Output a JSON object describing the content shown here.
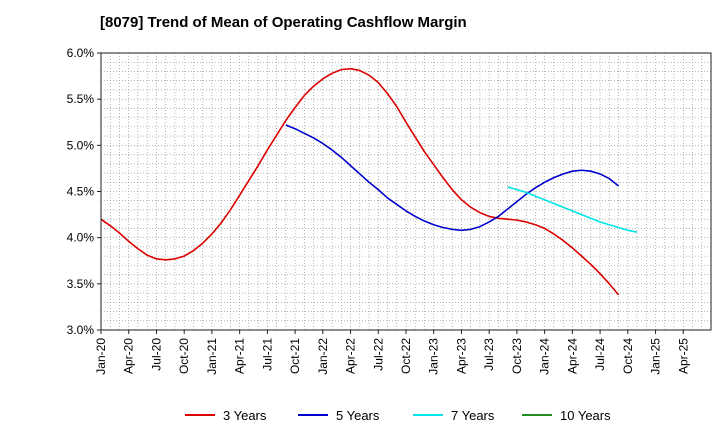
{
  "chart_data": {
    "type": "line",
    "title": "[8079]  Trend of Mean of Operating Cashflow Margin",
    "xlabel": "",
    "ylabel": "",
    "x_ticks": [
      "Jan-20",
      "Apr-20",
      "Jul-20",
      "Oct-20",
      "Jan-21",
      "Apr-21",
      "Jul-21",
      "Oct-21",
      "Jan-22",
      "Apr-22",
      "Jul-22",
      "Oct-22",
      "Jan-23",
      "Apr-23",
      "Jul-23",
      "Oct-23",
      "Jan-24",
      "Apr-24",
      "Jul-24",
      "Oct-24",
      "Jan-25",
      "Apr-25"
    ],
    "y_ticks": [
      "3.0%",
      "3.5%",
      "4.0%",
      "4.5%",
      "5.0%",
      "5.5%",
      "6.0%"
    ],
    "ylim": [
      3.0,
      6.0
    ],
    "grid": true,
    "legend_position": "bottom",
    "series": [
      {
        "name": "3 Years",
        "color": "#dd0000",
        "points": [
          [
            "2020-01",
            4.2
          ],
          [
            "2020-02",
            4.13
          ],
          [
            "2020-03",
            4.05
          ],
          [
            "2020-04",
            3.96
          ],
          [
            "2020-05",
            3.88
          ],
          [
            "2020-06",
            3.81
          ],
          [
            "2020-07",
            3.77
          ],
          [
            "2020-08",
            3.76
          ],
          [
            "2020-09",
            3.77
          ],
          [
            "2020-10",
            3.8
          ],
          [
            "2020-11",
            3.86
          ],
          [
            "2020-12",
            3.94
          ],
          [
            "2021-01",
            4.04
          ],
          [
            "2021-02",
            4.16
          ],
          [
            "2021-03",
            4.3
          ],
          [
            "2021-04",
            4.46
          ],
          [
            "2021-05",
            4.62
          ],
          [
            "2021-06",
            4.78
          ],
          [
            "2021-07",
            4.95
          ],
          [
            "2021-08",
            5.11
          ],
          [
            "2021-09",
            5.27
          ],
          [
            "2021-10",
            5.41
          ],
          [
            "2021-11",
            5.54
          ],
          [
            "2021-12",
            5.64
          ],
          [
            "2022-01",
            5.72
          ],
          [
            "2022-02",
            5.78
          ],
          [
            "2022-03",
            5.82
          ],
          [
            "2022-04",
            5.83
          ],
          [
            "2022-05",
            5.81
          ],
          [
            "2022-06",
            5.76
          ],
          [
            "2022-07",
            5.68
          ],
          [
            "2022-08",
            5.56
          ],
          [
            "2022-09",
            5.42
          ],
          [
            "2022-10",
            5.25
          ],
          [
            "2022-11",
            5.09
          ],
          [
            "2022-12",
            4.93
          ],
          [
            "2023-01",
            4.79
          ],
          [
            "2023-02",
            4.65
          ],
          [
            "2023-03",
            4.52
          ],
          [
            "2023-04",
            4.41
          ],
          [
            "2023-05",
            4.33
          ],
          [
            "2023-06",
            4.27
          ],
          [
            "2023-07",
            4.23
          ],
          [
            "2023-08",
            4.21
          ],
          [
            "2023-09",
            4.2
          ],
          [
            "2023-10",
            4.19
          ],
          [
            "2023-11",
            4.17
          ],
          [
            "2023-12",
            4.14
          ],
          [
            "2024-01",
            4.1
          ],
          [
            "2024-02",
            4.04
          ],
          [
            "2024-03",
            3.97
          ],
          [
            "2024-04",
            3.89
          ],
          [
            "2024-05",
            3.8
          ],
          [
            "2024-06",
            3.71
          ],
          [
            "2024-07",
            3.61
          ],
          [
            "2024-08",
            3.5
          ],
          [
            "2024-09",
            3.38
          ]
        ]
      },
      {
        "name": "5 Years",
        "color": "#0000cc",
        "points": [
          [
            "2021-09",
            5.22
          ],
          [
            "2021-10",
            5.18
          ],
          [
            "2021-11",
            5.13
          ],
          [
            "2021-12",
            5.08
          ],
          [
            "2022-01",
            5.02
          ],
          [
            "2022-02",
            4.95
          ],
          [
            "2022-03",
            4.87
          ],
          [
            "2022-04",
            4.78
          ],
          [
            "2022-05",
            4.69
          ],
          [
            "2022-06",
            4.6
          ],
          [
            "2022-07",
            4.52
          ],
          [
            "2022-08",
            4.43
          ],
          [
            "2022-09",
            4.36
          ],
          [
            "2022-10",
            4.29
          ],
          [
            "2022-11",
            4.23
          ],
          [
            "2022-12",
            4.18
          ],
          [
            "2023-01",
            4.14
          ],
          [
            "2023-02",
            4.11
          ],
          [
            "2023-03",
            4.09
          ],
          [
            "2023-04",
            4.08
          ],
          [
            "2023-05",
            4.09
          ],
          [
            "2023-06",
            4.12
          ],
          [
            "2023-07",
            4.17
          ],
          [
            "2023-08",
            4.23
          ],
          [
            "2023-09",
            4.31
          ],
          [
            "2023-10",
            4.39
          ],
          [
            "2023-11",
            4.47
          ],
          [
            "2023-12",
            4.54
          ],
          [
            "2024-01",
            4.6
          ],
          [
            "2024-02",
            4.65
          ],
          [
            "2024-03",
            4.69
          ],
          [
            "2024-04",
            4.72
          ],
          [
            "2024-05",
            4.73
          ],
          [
            "2024-06",
            4.72
          ],
          [
            "2024-07",
            4.69
          ],
          [
            "2024-08",
            4.64
          ],
          [
            "2024-09",
            4.56
          ]
        ]
      },
      {
        "name": "7 Years",
        "color": "#00e5e5",
        "points": [
          [
            "2023-09",
            4.55
          ],
          [
            "2023-10",
            4.52
          ],
          [
            "2023-11",
            4.49
          ],
          [
            "2023-12",
            4.45
          ],
          [
            "2024-01",
            4.41
          ],
          [
            "2024-02",
            4.37
          ],
          [
            "2024-03",
            4.33
          ],
          [
            "2024-04",
            4.29
          ],
          [
            "2024-05",
            4.25
          ],
          [
            "2024-06",
            4.21
          ],
          [
            "2024-07",
            4.17
          ],
          [
            "2024-08",
            4.14
          ],
          [
            "2024-09",
            4.11
          ],
          [
            "2024-10",
            4.08
          ],
          [
            "2024-11",
            4.06
          ]
        ]
      },
      {
        "name": "10 Years",
        "color": "#228b22",
        "points": []
      }
    ]
  }
}
